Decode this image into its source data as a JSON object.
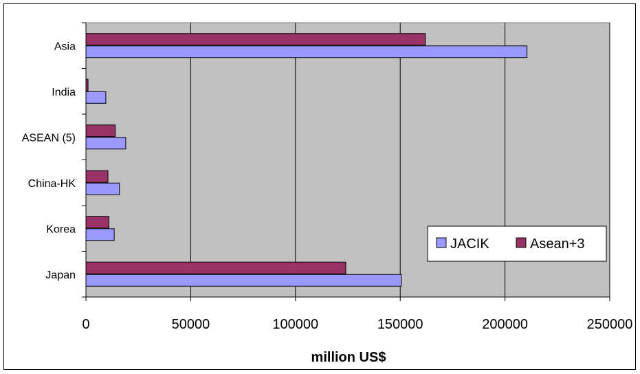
{
  "chart_data": {
    "type": "bar",
    "orientation": "horizontal",
    "categories": [
      "Japan",
      "Korea",
      "China-HK",
      "ASEAN (5)",
      "India",
      "Asia"
    ],
    "series": [
      {
        "name": "JACIK",
        "values": [
          150500,
          13500,
          16000,
          19000,
          9500,
          210500
        ]
      },
      {
        "name": "Asean+3",
        "values": [
          124000,
          11000,
          10500,
          14000,
          1000,
          162000
        ]
      }
    ],
    "title": "",
    "xlabel": "million US$",
    "ylabel": "",
    "xlim": [
      0,
      250000
    ],
    "x_ticks": [
      "0",
      "50000",
      "100000",
      "150000",
      "200000",
      "250000"
    ],
    "grid": "vertical major gridlines",
    "legend_position": "right",
    "plot_background": "#c0c0c0",
    "colors": {
      "JACIK": "#9999ff",
      "Asean+3": "#993366"
    }
  }
}
